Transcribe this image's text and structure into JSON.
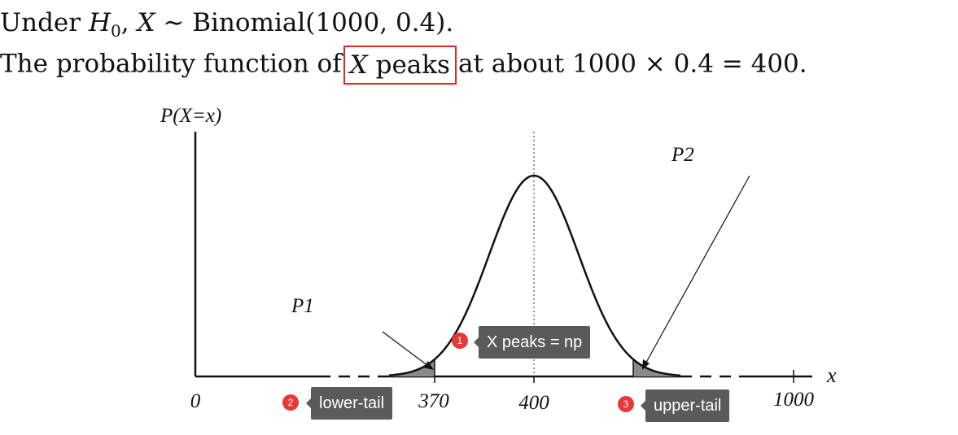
{
  "text": {
    "line1": {
      "prefix": "Under ",
      "h0": "H",
      "h0_sub": "0",
      "comma": ", ",
      "x": "X",
      "rest": " ∼ Binomial(1000, 0.4)."
    },
    "line2": {
      "before": "The probability function of",
      "highlight_x": "X",
      "highlight_rest": " peaks",
      "after": "at about 1000 × 0.4 = 400."
    }
  },
  "highlight_color": "#e0262b",
  "diagram": {
    "y_axis_label": "P(X=x)",
    "x_axis_label": "x",
    "ticks": [
      {
        "value": 0,
        "label": "0"
      },
      {
        "value": 370,
        "label": "370"
      },
      {
        "value": 400,
        "label": "400"
      },
      {
        "value": 1000,
        "label": "1000"
      }
    ],
    "peak": 400,
    "lower_tail_cut": 370,
    "upper_tail_cut": 430,
    "p1_label": "P1",
    "p2_label": "P2",
    "tail_fill": "#8a8a8a"
  },
  "annotations": [
    {
      "number": "1",
      "label": "X peaks = np"
    },
    {
      "number": "2",
      "label": "lower-tail"
    },
    {
      "number": "3",
      "label": "upper-tail"
    }
  ],
  "annotation_colors": {
    "badge": "#e8383a",
    "tag": "#5a5a5a"
  }
}
